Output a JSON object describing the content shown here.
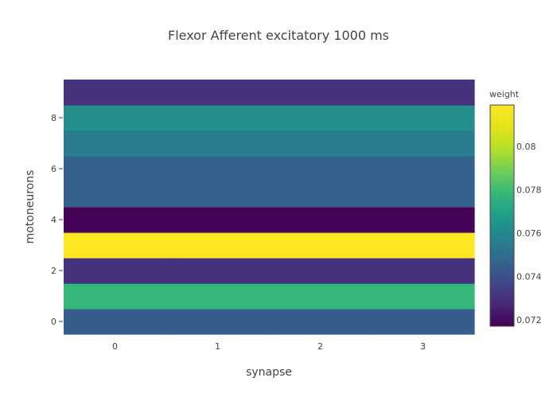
{
  "chart_data": {
    "type": "heatmap",
    "title": "Flexor Afferent excitatory 1000 ms",
    "xlabel": "synapse",
    "ylabel": "motoneurons",
    "x": [
      0,
      1,
      2,
      3
    ],
    "y": [
      0,
      1,
      2,
      3,
      4,
      5,
      6,
      7,
      8,
      9
    ],
    "x_range": [
      -0.5,
      3.5
    ],
    "y_range": [
      -0.5,
      9.5
    ],
    "x_ticks": [
      0,
      1,
      2,
      3
    ],
    "y_ticks": [
      0,
      2,
      4,
      6,
      8
    ],
    "row_values": [
      0.0744,
      0.0778,
      0.073,
      0.0819,
      0.0718,
      0.0745,
      0.0745,
      0.0755,
      0.0762,
      0.073
    ],
    "colorscale": "Viridis",
    "colorbar": {
      "title": "weight",
      "range": [
        0.0717,
        0.0819
      ],
      "ticks": [
        0.072,
        0.074,
        0.076,
        0.078,
        0.08
      ],
      "tick_labels": [
        "0.072",
        "0.074",
        "0.076",
        "0.078",
        "0.08"
      ]
    },
    "grid": false
  }
}
